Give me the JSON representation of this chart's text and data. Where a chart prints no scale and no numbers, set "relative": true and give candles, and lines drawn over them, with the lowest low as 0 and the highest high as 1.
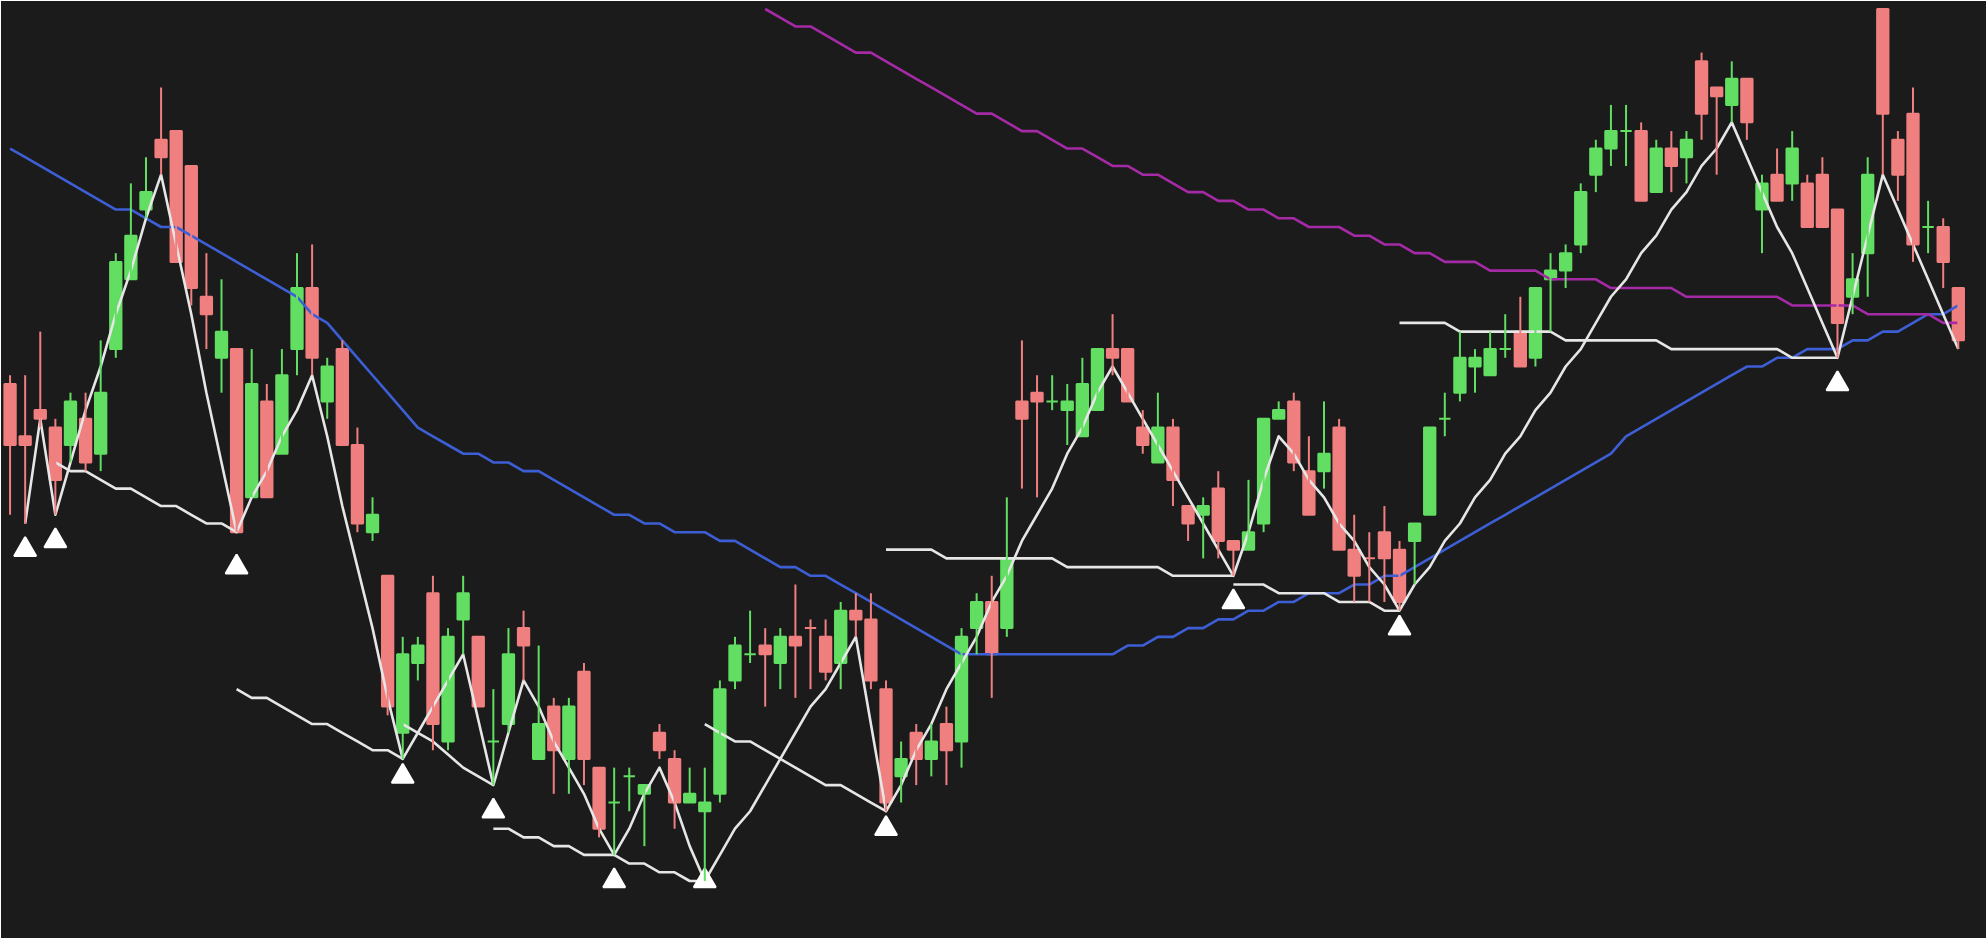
{
  "chart_data": {
    "type": "candlestick",
    "relative": true,
    "tick_labels": false,
    "categories": [
      null,
      null,
      null,
      null,
      null,
      null,
      null,
      null,
      null,
      null,
      null,
      null,
      null,
      null,
      null,
      null,
      null,
      null,
      null,
      null,
      null,
      null,
      null,
      null,
      null,
      null,
      null,
      null,
      null,
      null,
      null,
      null,
      null,
      null,
      null,
      null,
      null,
      null,
      null,
      null,
      null,
      null,
      null,
      null,
      null,
      null,
      null,
      null,
      null,
      null,
      null,
      null,
      null,
      null,
      null,
      null,
      null,
      null,
      null,
      null,
      null,
      null,
      null,
      null,
      null,
      null,
      null,
      null,
      null,
      null,
      null,
      null,
      null,
      null,
      null,
      null,
      null,
      null,
      null,
      null,
      null,
      null,
      null,
      null,
      null,
      null,
      null,
      null,
      null,
      null,
      null,
      null,
      null,
      null,
      null,
      null,
      null,
      null,
      null,
      null,
      null,
      null,
      null,
      null,
      null,
      null,
      null,
      null,
      null,
      null,
      null,
      null,
      null,
      null,
      null,
      null,
      null,
      null,
      null,
      null,
      null,
      null,
      null,
      null,
      null,
      null,
      null,
      null,
      null,
      null
    ],
    "ohlc": [
      [
        0.57,
        0.58,
        0.42,
        0.5
      ],
      [
        0.51,
        0.58,
        0.41,
        0.5
      ],
      [
        0.54,
        0.63,
        0.52,
        0.53
      ],
      [
        0.52,
        0.53,
        0.42,
        0.46
      ],
      [
        0.5,
        0.56,
        0.48,
        0.55
      ],
      [
        0.53,
        0.56,
        0.47,
        0.48
      ],
      [
        0.49,
        0.62,
        0.47,
        0.56
      ],
      [
        0.61,
        0.72,
        0.6,
        0.71
      ],
      [
        0.69,
        0.8,
        0.69,
        0.74
      ],
      [
        0.77,
        0.83,
        0.76,
        0.79
      ],
      [
        0.85,
        0.91,
        0.81,
        0.83
      ],
      [
        0.86,
        0.86,
        0.71,
        0.71
      ],
      [
        0.82,
        0.82,
        0.66,
        0.68
      ],
      [
        0.67,
        0.72,
        0.61,
        0.65
      ],
      [
        0.6,
        0.69,
        0.56,
        0.63
      ],
      [
        0.61,
        0.61,
        0.4,
        0.4
      ],
      [
        0.44,
        0.61,
        0.44,
        0.57
      ],
      [
        0.55,
        0.57,
        0.44,
        0.44
      ],
      [
        0.49,
        0.61,
        0.49,
        0.58
      ],
      [
        0.61,
        0.72,
        0.58,
        0.68
      ],
      [
        0.68,
        0.73,
        0.58,
        0.6
      ],
      [
        0.55,
        0.6,
        0.53,
        0.59
      ],
      [
        0.61,
        0.62,
        0.5,
        0.5
      ],
      [
        0.5,
        0.52,
        0.4,
        0.41
      ],
      [
        0.4,
        0.44,
        0.39,
        0.42
      ],
      [
        0.35,
        0.35,
        0.19,
        0.2
      ],
      [
        0.17,
        0.28,
        0.14,
        0.26
      ],
      [
        0.25,
        0.28,
        0.23,
        0.27
      ],
      [
        0.33,
        0.35,
        0.15,
        0.18
      ],
      [
        0.16,
        0.29,
        0.15,
        0.28
      ],
      [
        0.3,
        0.35,
        0.26,
        0.33
      ],
      [
        0.28,
        0.28,
        0.2,
        0.2
      ],
      [
        0.16,
        0.22,
        0.11,
        0.16
      ],
      [
        0.18,
        0.29,
        0.17,
        0.26
      ],
      [
        0.29,
        0.31,
        0.23,
        0.27
      ],
      [
        0.14,
        0.27,
        0.14,
        0.18
      ],
      [
        0.2,
        0.21,
        0.1,
        0.15
      ],
      [
        0.14,
        0.21,
        0.1,
        0.2
      ],
      [
        0.24,
        0.25,
        0.11,
        0.14
      ],
      [
        0.13,
        0.13,
        0.05,
        0.06
      ],
      [
        0.09,
        0.13,
        0.03,
        0.09
      ],
      [
        0.12,
        0.13,
        0.08,
        0.12
      ],
      [
        0.1,
        0.11,
        0.04,
        0.11
      ],
      [
        0.17,
        0.18,
        0.14,
        0.15
      ],
      [
        0.14,
        0.15,
        0.06,
        0.09
      ],
      [
        0.09,
        0.13,
        0.09,
        0.1
      ],
      [
        0.08,
        0.13,
        0.0,
        0.09
      ],
      [
        0.1,
        0.23,
        0.09,
        0.22
      ],
      [
        0.23,
        0.28,
        0.22,
        0.27
      ],
      [
        0.26,
        0.31,
        0.25,
        0.26
      ],
      [
        0.27,
        0.29,
        0.2,
        0.26
      ],
      [
        0.25,
        0.29,
        0.22,
        0.28
      ],
      [
        0.28,
        0.34,
        0.21,
        0.27
      ],
      [
        0.29,
        0.3,
        0.22,
        0.29
      ],
      [
        0.28,
        0.3,
        0.23,
        0.24
      ],
      [
        0.25,
        0.32,
        0.22,
        0.31
      ],
      [
        0.31,
        0.33,
        0.28,
        0.3
      ],
      [
        0.3,
        0.33,
        0.22,
        0.23
      ],
      [
        0.22,
        0.23,
        0.08,
        0.09
      ],
      [
        0.12,
        0.16,
        0.09,
        0.14
      ],
      [
        0.17,
        0.18,
        0.11,
        0.14
      ],
      [
        0.14,
        0.18,
        0.12,
        0.16
      ],
      [
        0.18,
        0.2,
        0.11,
        0.15
      ],
      [
        0.16,
        0.29,
        0.13,
        0.28
      ],
      [
        0.29,
        0.33,
        0.26,
        0.32
      ],
      [
        0.32,
        0.35,
        0.21,
        0.26
      ],
      [
        0.29,
        0.44,
        0.28,
        0.37
      ],
      [
        0.55,
        0.62,
        0.45,
        0.53
      ],
      [
        0.56,
        0.58,
        0.44,
        0.55
      ],
      [
        0.55,
        0.58,
        0.54,
        0.55
      ],
      [
        0.54,
        0.57,
        0.5,
        0.55
      ],
      [
        0.51,
        0.6,
        0.51,
        0.57
      ],
      [
        0.54,
        0.61,
        0.54,
        0.61
      ],
      [
        0.61,
        0.65,
        0.58,
        0.6
      ],
      [
        0.61,
        0.61,
        0.55,
        0.55
      ],
      [
        0.52,
        0.54,
        0.49,
        0.5
      ],
      [
        0.48,
        0.56,
        0.48,
        0.52
      ],
      [
        0.52,
        0.53,
        0.43,
        0.46
      ],
      [
        0.43,
        0.43,
        0.39,
        0.41
      ],
      [
        0.42,
        0.44,
        0.37,
        0.43
      ],
      [
        0.45,
        0.47,
        0.37,
        0.39
      ],
      [
        0.39,
        0.39,
        0.35,
        0.38
      ],
      [
        0.38,
        0.46,
        0.38,
        0.4
      ],
      [
        0.41,
        0.53,
        0.4,
        0.53
      ],
      [
        0.53,
        0.55,
        0.53,
        0.54
      ],
      [
        0.55,
        0.56,
        0.47,
        0.48
      ],
      [
        0.47,
        0.51,
        0.42,
        0.42
      ],
      [
        0.47,
        0.55,
        0.45,
        0.49
      ],
      [
        0.52,
        0.53,
        0.38,
        0.38
      ],
      [
        0.38,
        0.42,
        0.32,
        0.35
      ],
      [
        0.37,
        0.4,
        0.32,
        0.37
      ],
      [
        0.4,
        0.43,
        0.32,
        0.37
      ],
      [
        0.38,
        0.39,
        0.31,
        0.32
      ],
      [
        0.39,
        0.41,
        0.34,
        0.41
      ],
      [
        0.42,
        0.52,
        0.42,
        0.52
      ],
      [
        0.53,
        0.56,
        0.51,
        0.53
      ],
      [
        0.56,
        0.63,
        0.55,
        0.6
      ],
      [
        0.59,
        0.61,
        0.56,
        0.6
      ],
      [
        0.58,
        0.63,
        0.58,
        0.61
      ],
      [
        0.61,
        0.65,
        0.6,
        0.61
      ],
      [
        0.63,
        0.67,
        0.59,
        0.59
      ],
      [
        0.6,
        0.68,
        0.59,
        0.68
      ],
      [
        0.69,
        0.72,
        0.63,
        0.7
      ],
      [
        0.7,
        0.73,
        0.68,
        0.72
      ],
      [
        0.73,
        0.8,
        0.72,
        0.79
      ],
      [
        0.81,
        0.85,
        0.79,
        0.84
      ],
      [
        0.84,
        0.89,
        0.82,
        0.86
      ],
      [
        0.86,
        0.89,
        0.82,
        0.86
      ],
      [
        0.86,
        0.87,
        0.78,
        0.78
      ],
      [
        0.79,
        0.85,
        0.79,
        0.84
      ],
      [
        0.84,
        0.86,
        0.79,
        0.82
      ],
      [
        0.83,
        0.86,
        0.8,
        0.85
      ],
      [
        0.94,
        0.95,
        0.85,
        0.88
      ],
      [
        0.91,
        0.91,
        0.81,
        0.9
      ],
      [
        0.89,
        0.94,
        0.87,
        0.92
      ],
      [
        0.92,
        0.92,
        0.85,
        0.87
      ],
      [
        0.77,
        0.81,
        0.72,
        0.8
      ],
      [
        0.81,
        0.84,
        0.78,
        0.78
      ],
      [
        0.8,
        0.86,
        0.78,
        0.84
      ],
      [
        0.8,
        0.81,
        0.75,
        0.75
      ],
      [
        0.81,
        0.83,
        0.75,
        0.75
      ],
      [
        0.77,
        0.77,
        0.6,
        0.64
      ],
      [
        0.67,
        0.72,
        0.65,
        0.69
      ],
      [
        0.72,
        0.83,
        0.67,
        0.81
      ],
      [
        1.0,
        1.0,
        0.81,
        0.88
      ],
      [
        0.85,
        0.86,
        0.78,
        0.81
      ],
      [
        0.88,
        0.91,
        0.71,
        0.73
      ],
      [
        0.75,
        0.78,
        0.72,
        0.75
      ],
      [
        0.75,
        0.76,
        0.68,
        0.71
      ],
      [
        0.68,
        0.68,
        0.61,
        0.62
      ]
    ],
    "colors": [
      "#f07f7f",
      "#f07f7f",
      "#f07f7f",
      "#f07f7f",
      "#62de62",
      "#f07f7f",
      "#62de62",
      "#62de62",
      "#62de62",
      "#62de62",
      "#f07f7f",
      "#f07f7f",
      "#f07f7f",
      "#f07f7f",
      "#62de62",
      "#f07f7f",
      "#62de62",
      "#f07f7f",
      "#62de62",
      "#62de62",
      "#f07f7f",
      "#62de62",
      "#f07f7f",
      "#f07f7f",
      "#62de62",
      "#f07f7f",
      "#62de62",
      "#62de62",
      "#f07f7f",
      "#62de62",
      "#62de62",
      "#f07f7f",
      "#62de62",
      "#62de62",
      "#f07f7f",
      "#62de62",
      "#f07f7f",
      "#62de62",
      "#f07f7f",
      "#f07f7f",
      "#62de62",
      "#62de62",
      "#62de62",
      "#f07f7f",
      "#f07f7f",
      "#62de62",
      "#62de62",
      "#62de62",
      "#62de62",
      "#62de62",
      "#f07f7f",
      "#62de62",
      "#f07f7f",
      "#f07f7f",
      "#f07f7f",
      "#62de62",
      "#f07f7f",
      "#f07f7f",
      "#f07f7f",
      "#62de62",
      "#f07f7f",
      "#62de62",
      "#f07f7f",
      "#62de62",
      "#62de62",
      "#f07f7f",
      "#62de62",
      "#f07f7f",
      "#f07f7f",
      "#62de62",
      "#62de62",
      "#62de62",
      "#62de62",
      "#f07f7f",
      "#f07f7f",
      "#f07f7f",
      "#62de62",
      "#f07f7f",
      "#f07f7f",
      "#62de62",
      "#f07f7f",
      "#f07f7f",
      "#62de62",
      "#62de62",
      "#62de62",
      "#f07f7f",
      "#f07f7f",
      "#62de62",
      "#f07f7f",
      "#f07f7f",
      "#f07f7f",
      "#f07f7f",
      "#f07f7f",
      "#62de62",
      "#62de62",
      "#62de62",
      "#62de62",
      "#62de62",
      "#62de62",
      "#62de62",
      "#f07f7f",
      "#62de62",
      "#62de62",
      "#62de62",
      "#62de62",
      "#62de62",
      "#62de62",
      "#62de62",
      "#f07f7f",
      "#62de62",
      "#f07f7f",
      "#62de62",
      "#f07f7f",
      "#f07f7f",
      "#62de62",
      "#f07f7f",
      "#62de62",
      "#f07f7f",
      "#62de62",
      "#f07f7f",
      "#f07f7f",
      "#f07f7f",
      "#62de62",
      "#62de62",
      "#f07f7f",
      "#f07f7f",
      "#f07f7f",
      "#62de62",
      "#f07f7f",
      "#f07f7f"
    ],
    "series": [
      {
        "type": "line",
        "color": "#3d5fd6",
        "values": [
          0.84,
          0.83,
          0.82,
          0.81,
          0.8,
          0.79,
          0.78,
          0.77,
          0.77,
          0.76,
          0.75,
          0.75,
          0.74,
          0.73,
          0.72,
          0.71,
          0.7,
          0.69,
          0.68,
          0.67,
          0.65,
          0.64,
          0.62,
          0.6,
          0.58,
          0.56,
          0.54,
          0.52,
          0.51,
          0.5,
          0.49,
          0.49,
          0.48,
          0.48,
          0.47,
          0.47,
          0.46,
          0.45,
          0.44,
          0.43,
          0.42,
          0.42,
          0.41,
          0.41,
          0.4,
          0.4,
          0.4,
          0.39,
          0.39,
          0.38,
          0.37,
          0.36,
          0.36,
          0.35,
          0.35,
          0.34,
          0.33,
          0.32,
          0.31,
          0.3,
          0.29,
          0.28,
          0.27,
          0.26,
          0.26,
          0.26,
          0.26,
          0.26,
          0.26,
          0.26,
          0.26,
          0.26,
          0.26,
          0.26,
          0.27,
          0.27,
          0.28,
          0.28,
          0.29,
          0.29,
          0.3,
          0.3,
          0.31,
          0.31,
          0.32,
          0.32,
          0.33,
          0.33,
          0.33,
          0.34,
          0.34,
          0.35,
          0.35,
          0.36,
          0.37,
          0.38,
          0.39,
          0.4,
          0.41,
          0.42,
          0.43,
          0.44,
          0.45,
          0.46,
          0.47,
          0.48,
          0.49,
          0.51,
          0.52,
          0.53,
          0.54,
          0.55,
          0.56,
          0.57,
          0.58,
          0.59,
          0.59,
          0.6,
          0.6,
          0.61,
          0.61,
          0.61,
          0.62,
          0.62,
          0.63,
          0.63,
          0.64,
          0.65,
          0.65,
          0.66
        ]
      },
      {
        "type": "line",
        "color": "#a52aa5",
        "values": [
          null,
          null,
          null,
          null,
          null,
          null,
          null,
          null,
          null,
          null,
          null,
          null,
          null,
          null,
          null,
          null,
          null,
          null,
          null,
          null,
          null,
          null,
          null,
          null,
          null,
          null,
          null,
          null,
          null,
          null,
          null,
          null,
          null,
          null,
          null,
          null,
          null,
          null,
          null,
          null,
          null,
          null,
          null,
          null,
          null,
          null,
          null,
          null,
          null,
          null,
          1.0,
          0.99,
          0.98,
          0.98,
          0.97,
          0.96,
          0.95,
          0.95,
          0.94,
          0.93,
          0.92,
          0.91,
          0.9,
          0.89,
          0.88,
          0.88,
          0.87,
          0.86,
          0.86,
          0.85,
          0.84,
          0.84,
          0.83,
          0.82,
          0.82,
          0.81,
          0.81,
          0.8,
          0.79,
          0.79,
          0.78,
          0.78,
          0.77,
          0.77,
          0.76,
          0.76,
          0.75,
          0.75,
          0.75,
          0.74,
          0.74,
          0.73,
          0.73,
          0.72,
          0.72,
          0.71,
          0.71,
          0.71,
          0.7,
          0.7,
          0.7,
          0.7,
          0.69,
          0.69,
          0.69,
          0.69,
          0.68,
          0.68,
          0.68,
          0.68,
          0.68,
          0.67,
          0.67,
          0.67,
          0.67,
          0.67,
          0.67,
          0.67,
          0.66,
          0.66,
          0.66,
          0.66,
          0.66,
          0.65,
          0.65,
          0.65,
          0.65,
          0.65,
          0.64,
          0.64
        ]
      },
      {
        "type": "line",
        "color": "#e6e6e6",
        "values": [
          null,
          0.41,
          0.53,
          0.42,
          0.48,
          0.54,
          0.59,
          0.65,
          0.7,
          0.76,
          0.81,
          0.73,
          0.65,
          0.56,
          0.48,
          0.4,
          0.44,
          0.47,
          0.51,
          0.54,
          0.58,
          0.51,
          0.43,
          0.36,
          0.29,
          0.21,
          0.14,
          0.17,
          0.2,
          0.23,
          0.26,
          0.185,
          0.11,
          0.17,
          0.23,
          0.2,
          0.16,
          0.13,
          0.1,
          0.06,
          0.03,
          0.06,
          0.1,
          0.13,
          0.09,
          0.04,
          0.0,
          0.03,
          0.06,
          0.08,
          0.11,
          0.14,
          0.17,
          0.2,
          0.22,
          0.25,
          0.28,
          0.18,
          0.08,
          0.11,
          0.15,
          0.18,
          0.22,
          0.25,
          0.28,
          0.32,
          0.35,
          0.39,
          0.42,
          0.45,
          0.49,
          0.52,
          0.56,
          0.59,
          0.56,
          0.53,
          0.5,
          0.47,
          0.44,
          0.41,
          0.38,
          0.35,
          0.4,
          0.46,
          0.51,
          0.49,
          0.46,
          0.44,
          0.41,
          0.39,
          0.36,
          0.34,
          0.31,
          0.34,
          0.36,
          0.39,
          0.41,
          0.44,
          0.46,
          0.49,
          0.51,
          0.54,
          0.56,
          0.59,
          0.61,
          0.64,
          0.67,
          0.69,
          0.72,
          0.74,
          0.77,
          0.79,
          0.82,
          0.84,
          0.87,
          0.83,
          0.79,
          0.75,
          0.72,
          0.68,
          0.64,
          0.6,
          0.67,
          0.74,
          0.81,
          0.77,
          0.73,
          0.69,
          0.65,
          0.61
        ]
      },
      {
        "type": "line",
        "color": "#e6e6e6",
        "values": [
          null,
          null,
          null,
          0.48,
          0.47,
          0.47,
          0.46,
          0.45,
          0.45,
          0.44,
          0.43,
          0.43,
          0.42,
          0.41,
          0.41,
          0.4,
          null,
          null,
          null,
          null,
          null,
          null,
          null,
          null,
          null,
          null,
          0.18,
          0.17,
          0.16,
          0.145,
          0.13,
          0.12,
          0.11,
          null,
          null,
          null,
          null,
          null,
          null,
          null,
          null,
          null,
          null,
          null,
          null,
          null,
          0.18,
          0.17,
          0.16,
          0.16,
          0.15,
          0.14,
          0.13,
          0.12,
          0.11,
          0.11,
          0.1,
          0.09,
          0.08,
          null,
          null,
          null,
          null,
          null,
          null,
          null,
          null,
          null,
          null,
          null,
          null,
          null,
          null,
          null,
          null,
          null,
          null,
          null,
          null,
          null,
          null,
          0.34,
          0.34,
          0.34,
          0.33,
          0.33,
          0.33,
          0.33,
          0.32,
          0.32,
          0.32,
          0.31,
          0.31,
          null,
          null,
          null,
          null,
          null,
          null,
          null,
          null,
          null,
          null,
          null,
          null,
          null,
          null,
          null,
          null,
          null,
          null,
          null,
          null,
          null,
          null,
          null,
          null,
          null,
          null,
          null,
          null,
          null,
          null,
          null,
          null,
          null,
          null,
          null,
          null,
          null
        ]
      },
      {
        "type": "line",
        "color": "#e6e6e6",
        "values": [
          null,
          null,
          null,
          null,
          null,
          null,
          null,
          null,
          null,
          null,
          null,
          null,
          null,
          null,
          null,
          0.22,
          0.21,
          0.21,
          0.2,
          0.19,
          0.18,
          0.18,
          0.17,
          0.16,
          0.15,
          0.15,
          0.14,
          null,
          null,
          null,
          null,
          null,
          0.06,
          0.06,
          0.05,
          0.05,
          0.04,
          0.04,
          0.03,
          0.03,
          0.03,
          0.02,
          0.02,
          0.01,
          0.01,
          0.0,
          0.0,
          null,
          null,
          null,
          null,
          null,
          null,
          null,
          null,
          null,
          null,
          null,
          0.38,
          0.38,
          0.38,
          0.38,
          0.37,
          0.37,
          0.37,
          0.37,
          0.37,
          0.37,
          0.37,
          0.37,
          0.36,
          0.36,
          0.36,
          0.36,
          0.36,
          0.36,
          0.36,
          0.35,
          0.35,
          0.35,
          0.35,
          0.35,
          null,
          null,
          null,
          null,
          null,
          null,
          null,
          null,
          null,
          null,
          0.64,
          0.64,
          0.64,
          0.64,
          0.63,
          0.63,
          0.63,
          0.63,
          0.63,
          0.63,
          0.63,
          0.62,
          0.62,
          0.62,
          0.62,
          0.62,
          0.62,
          0.62,
          0.61,
          0.61,
          0.61,
          0.61,
          0.61,
          0.61,
          0.61,
          0.61,
          0.6,
          0.6,
          0.6,
          0.6,
          null,
          null,
          null,
          null,
          null,
          null,
          null,
          null
        ]
      },
      {
        "type": "scatter",
        "marker": "triangle",
        "color": "#ffffff",
        "values": [
          null,
          0.38,
          null,
          0.39,
          null,
          null,
          null,
          null,
          null,
          null,
          null,
          null,
          null,
          null,
          null,
          0.36,
          null,
          null,
          null,
          null,
          null,
          null,
          null,
          null,
          null,
          null,
          0.12,
          null,
          null,
          null,
          null,
          null,
          0.08,
          null,
          null,
          null,
          null,
          null,
          null,
          null,
          0.0,
          null,
          null,
          null,
          null,
          null,
          0.0,
          null,
          null,
          null,
          null,
          null,
          null,
          null,
          null,
          null,
          null,
          null,
          0.06,
          null,
          null,
          null,
          null,
          null,
          null,
          null,
          null,
          null,
          null,
          null,
          null,
          null,
          null,
          null,
          null,
          null,
          null,
          null,
          null,
          null,
          null,
          0.32,
          null,
          null,
          null,
          null,
          null,
          null,
          null,
          null,
          null,
          null,
          0.29,
          null,
          null,
          null,
          null,
          null,
          null,
          null,
          null,
          null,
          null,
          null,
          null,
          null,
          null,
          null,
          null,
          null,
          null,
          null,
          null,
          null,
          null,
          null,
          null,
          null,
          null,
          null,
          null,
          0.57,
          null,
          null,
          null,
          null,
          null,
          null,
          null,
          null
        ]
      }
    ]
  }
}
